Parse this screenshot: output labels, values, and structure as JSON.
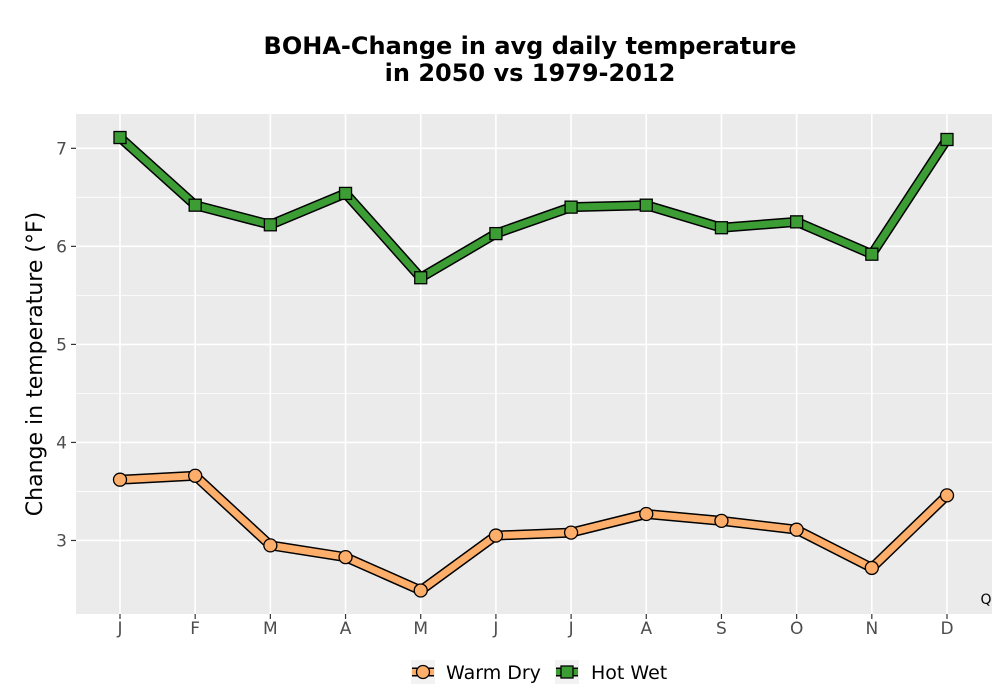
{
  "chart_data": {
    "type": "line",
    "title_line1": "BOHA-Change in avg daily temperature",
    "title_line2": "in 2050 vs 1979-2012",
    "xlabel": "",
    "ylabel": "Change in temperature (°F)",
    "categories": [
      "J",
      "F",
      "M",
      "A",
      "M",
      "J",
      "J",
      "A",
      "S",
      "O",
      "N",
      "D"
    ],
    "yticks": [
      3,
      4,
      5,
      6,
      7
    ],
    "ylim": [
      2.25,
      7.35
    ],
    "grid": true,
    "legend_position": "bottom",
    "corner_label": "Q",
    "series": [
      {
        "name": "Warm Dry",
        "marker": "circle",
        "color": "#fdae6b",
        "values": [
          3.62,
          3.66,
          2.95,
          2.83,
          2.49,
          3.05,
          3.08,
          3.27,
          3.2,
          3.11,
          2.72,
          3.46
        ]
      },
      {
        "name": "Hot Wet",
        "marker": "square",
        "color": "#3c9d34",
        "values": [
          7.11,
          6.42,
          6.22,
          6.54,
          5.68,
          6.13,
          6.4,
          6.42,
          6.19,
          6.25,
          5.92,
          7.09
        ]
      }
    ]
  }
}
